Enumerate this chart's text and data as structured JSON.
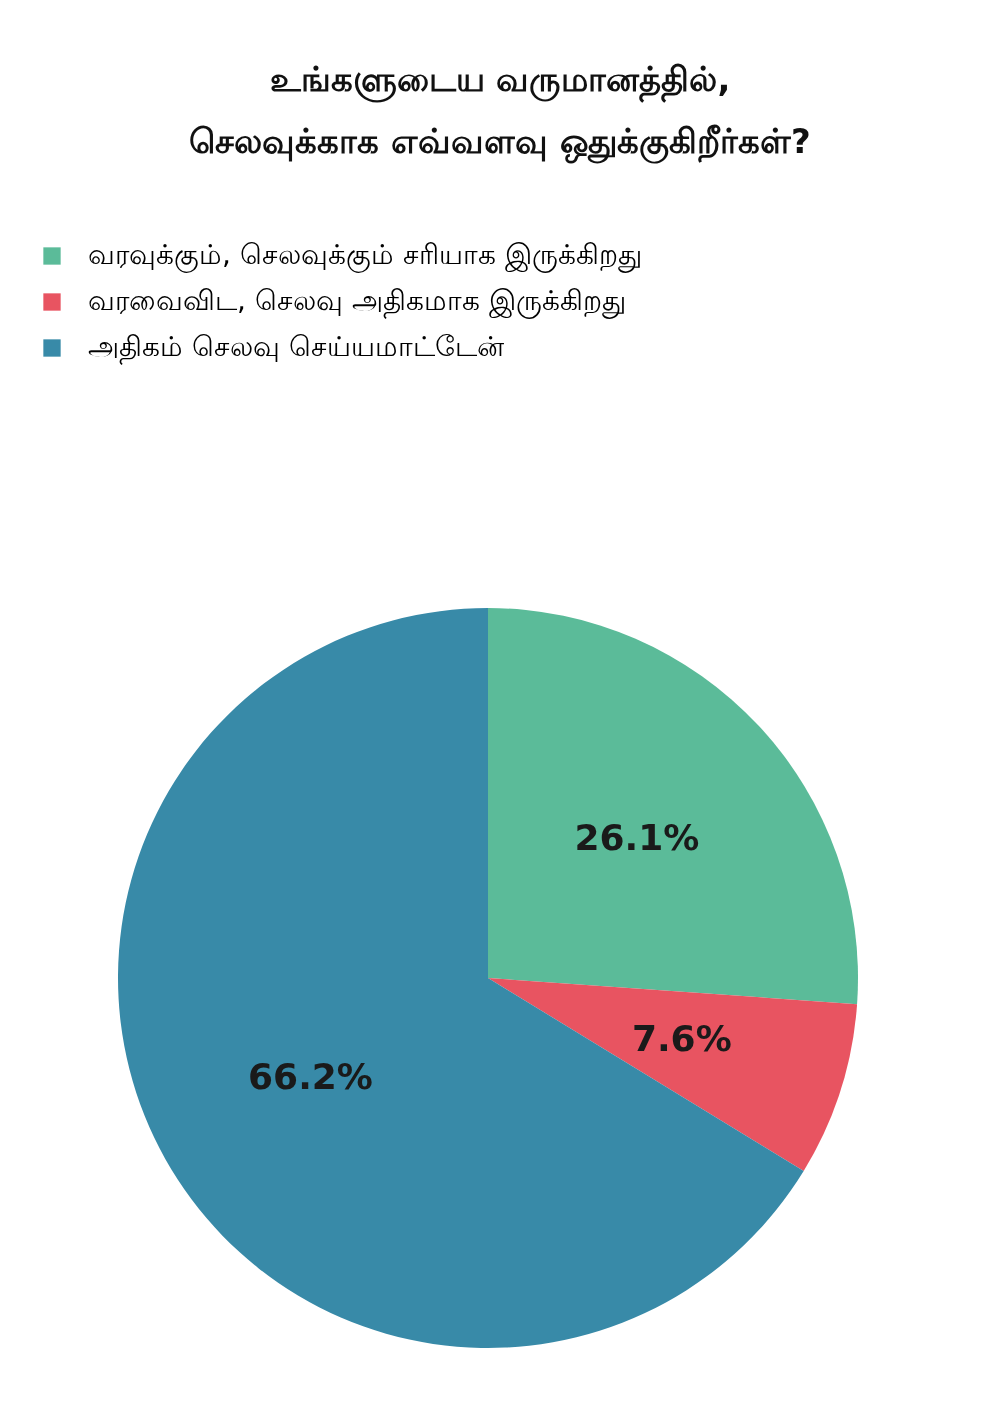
{
  "chart_data": {
    "type": "pie",
    "title": "உங்களுடைய வருமானத்தில்,\nசெலவுக்காக எவ்வளவு ஒதுக்குகிறீர்கள்?",
    "categories": [
      "வரவுக்கும், செலவுக்கும் சரியாக இருக்கிறது",
      "வரவைவிட, செலவு அதிகமாக இருக்கிறது",
      "அதிகம் செலவு செய்யமாட்டேன்"
    ],
    "values": [
      26.1,
      7.6,
      66.2
    ],
    "colors": [
      "#5bbb99",
      "#e85461",
      "#388aa8"
    ],
    "value_labels": [
      "26.1%",
      "7.6%",
      "66.2%"
    ],
    "legend": "top left"
  }
}
